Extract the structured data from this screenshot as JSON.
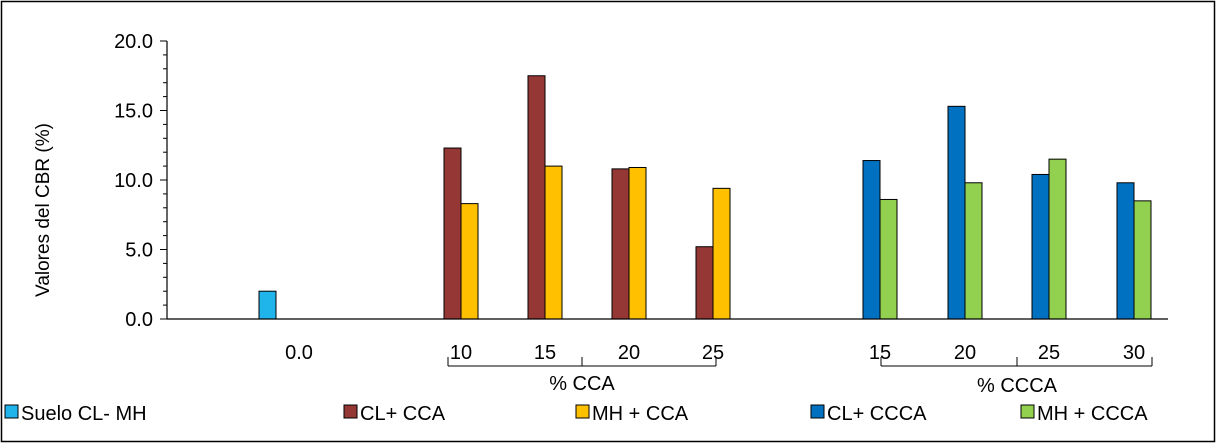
{
  "chart_data": {
    "type": "bar",
    "title": "",
    "xlabel": "",
    "ylabel": "Valores del CBR (%)",
    "ylim": [
      0,
      20
    ],
    "y_ticks": [
      "0.0",
      "5.0",
      "10.0",
      "15.0",
      "20.0"
    ],
    "grid": false,
    "legend_position": "bottom",
    "groups": [
      {
        "label": "",
        "categories": [
          "0.0"
        ]
      },
      {
        "label": "% CCA",
        "categories": [
          "10",
          "15",
          "20",
          "25"
        ]
      },
      {
        "label": "% CCCA",
        "categories": [
          "15",
          "20",
          "25",
          "30"
        ]
      }
    ],
    "series": [
      {
        "name": "Suelo CL- MH",
        "color": "#1fb4ea",
        "values": [
          2.0,
          null,
          null,
          null,
          null,
          null,
          null,
          null,
          null
        ]
      },
      {
        "name": "CL+ CCA",
        "color": "#953735",
        "values": [
          null,
          12.3,
          17.5,
          10.8,
          5.2,
          null,
          null,
          null,
          null
        ]
      },
      {
        "name": "MH + CCA",
        "color": "#ffc000",
        "values": [
          null,
          8.3,
          11.0,
          10.9,
          9.4,
          null,
          null,
          null,
          null
        ]
      },
      {
        "name": "CL+ CCCA",
        "color": "#0070c0",
        "values": [
          null,
          null,
          null,
          null,
          null,
          11.4,
          15.3,
          10.4,
          9.8
        ]
      },
      {
        "name": "MH + CCCA",
        "color": "#92d050",
        "values": [
          null,
          null,
          null,
          null,
          null,
          8.6,
          9.8,
          11.5,
          8.5
        ]
      }
    ]
  }
}
